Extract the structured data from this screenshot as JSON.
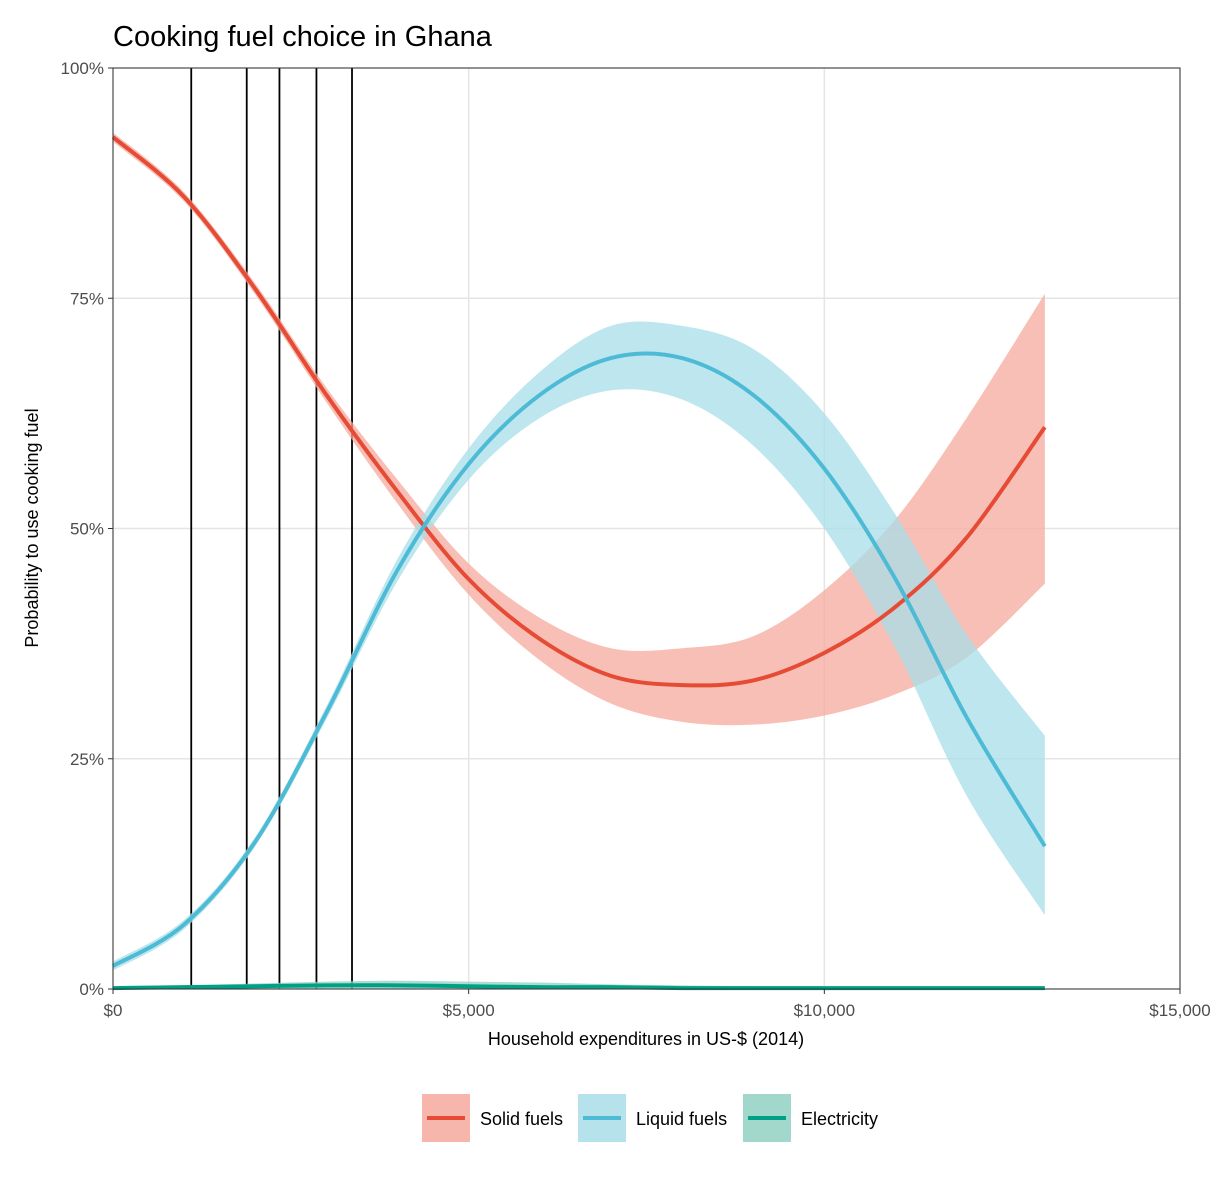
{
  "chart_data": {
    "type": "line",
    "title": "Cooking fuel choice in Ghana",
    "xlabel": "Household expenditures in US-$ (2014)",
    "ylabel": "Probability to use cooking fuel",
    "xlim": [
      0,
      15000
    ],
    "ylim": [
      0,
      1
    ],
    "x_ticks": [
      0,
      5000,
      10000,
      15000
    ],
    "x_tick_labels": [
      "$0",
      "$5,000",
      "$10,000",
      "$15,000"
    ],
    "y_ticks": [
      0,
      0.25,
      0.5,
      0.75,
      1
    ],
    "y_tick_labels": [
      "0%",
      "25%",
      "50%",
      "75%",
      "100%"
    ],
    "grid": true,
    "legend_position": "bottom",
    "vertical_lines": [
      1100,
      1880,
      2340,
      2860,
      3360
    ],
    "x": [
      0,
      1000,
      2000,
      3000,
      4000,
      5000,
      6000,
      7000,
      8000,
      9000,
      10000,
      11000,
      12000,
      13100
    ],
    "series": [
      {
        "name": "Solid fuels",
        "color": "#e64b35",
        "band_color": "#f4a99c",
        "values": [
          0.925,
          0.86,
          0.76,
          0.645,
          0.54,
          0.445,
          0.38,
          0.34,
          0.33,
          0.335,
          0.365,
          0.415,
          0.49,
          0.61
        ],
        "lower": [
          0.92,
          0.855,
          0.754,
          0.637,
          0.527,
          0.428,
          0.357,
          0.31,
          0.29,
          0.287,
          0.297,
          0.32,
          0.36,
          0.44
        ],
        "upper": [
          0.93,
          0.865,
          0.766,
          0.653,
          0.553,
          0.462,
          0.403,
          0.37,
          0.37,
          0.383,
          0.433,
          0.51,
          0.62,
          0.755
        ]
      },
      {
        "name": "Liquid fuels",
        "color": "#4dbbd5",
        "band_color": "#a8dde8",
        "values": [
          0.025,
          0.07,
          0.16,
          0.3,
          0.455,
          0.57,
          0.645,
          0.685,
          0.685,
          0.645,
          0.565,
          0.445,
          0.295,
          0.155
        ],
        "lower": [
          0.02,
          0.065,
          0.155,
          0.293,
          0.443,
          0.553,
          0.62,
          0.65,
          0.64,
          0.59,
          0.5,
          0.37,
          0.21,
          0.08
        ],
        "upper": [
          0.03,
          0.075,
          0.165,
          0.307,
          0.467,
          0.587,
          0.67,
          0.72,
          0.72,
          0.695,
          0.625,
          0.515,
          0.385,
          0.275
        ]
      },
      {
        "name": "Electricity",
        "color": "#00a087",
        "band_color": "#91d1c2",
        "values": [
          0.001,
          0.002,
          0.003,
          0.004,
          0.004,
          0.003,
          0.002,
          0.002,
          0.001,
          0.001,
          0.001,
          0.001,
          0.001,
          0.001
        ],
        "lower": [
          0,
          0,
          0,
          0,
          0,
          0,
          0,
          0,
          0,
          0,
          0,
          0,
          0,
          0
        ],
        "upper": [
          0.002,
          0.004,
          0.006,
          0.008,
          0.009,
          0.008,
          0.007,
          0.005,
          0.004,
          0.003,
          0.003,
          0.002,
          0.002,
          0.002
        ]
      }
    ]
  }
}
